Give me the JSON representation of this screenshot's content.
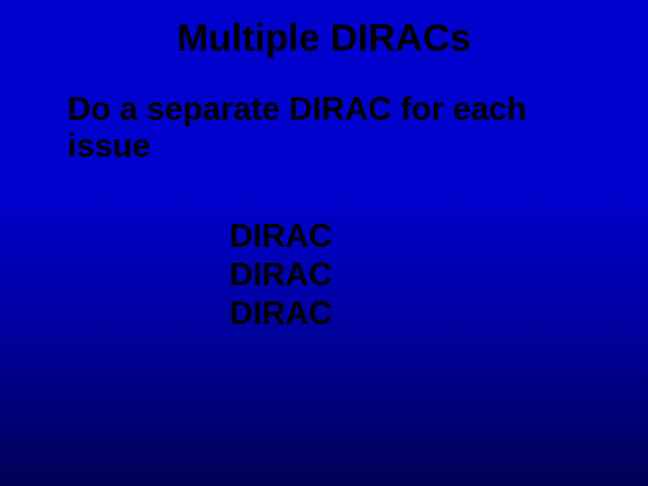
{
  "slide": {
    "title": "Multiple DIRACs",
    "subtitle": "Do a separate DIRAC for each issue",
    "list_items": [
      "DIRAC",
      "DIRAC",
      "DIRAC"
    ],
    "background_gradient_top": "#0000cc",
    "background_gradient_bottom": "#000055",
    "text_color": "#000000",
    "title_fontsize": 42,
    "subtitle_fontsize": 36,
    "list_fontsize": 36
  }
}
